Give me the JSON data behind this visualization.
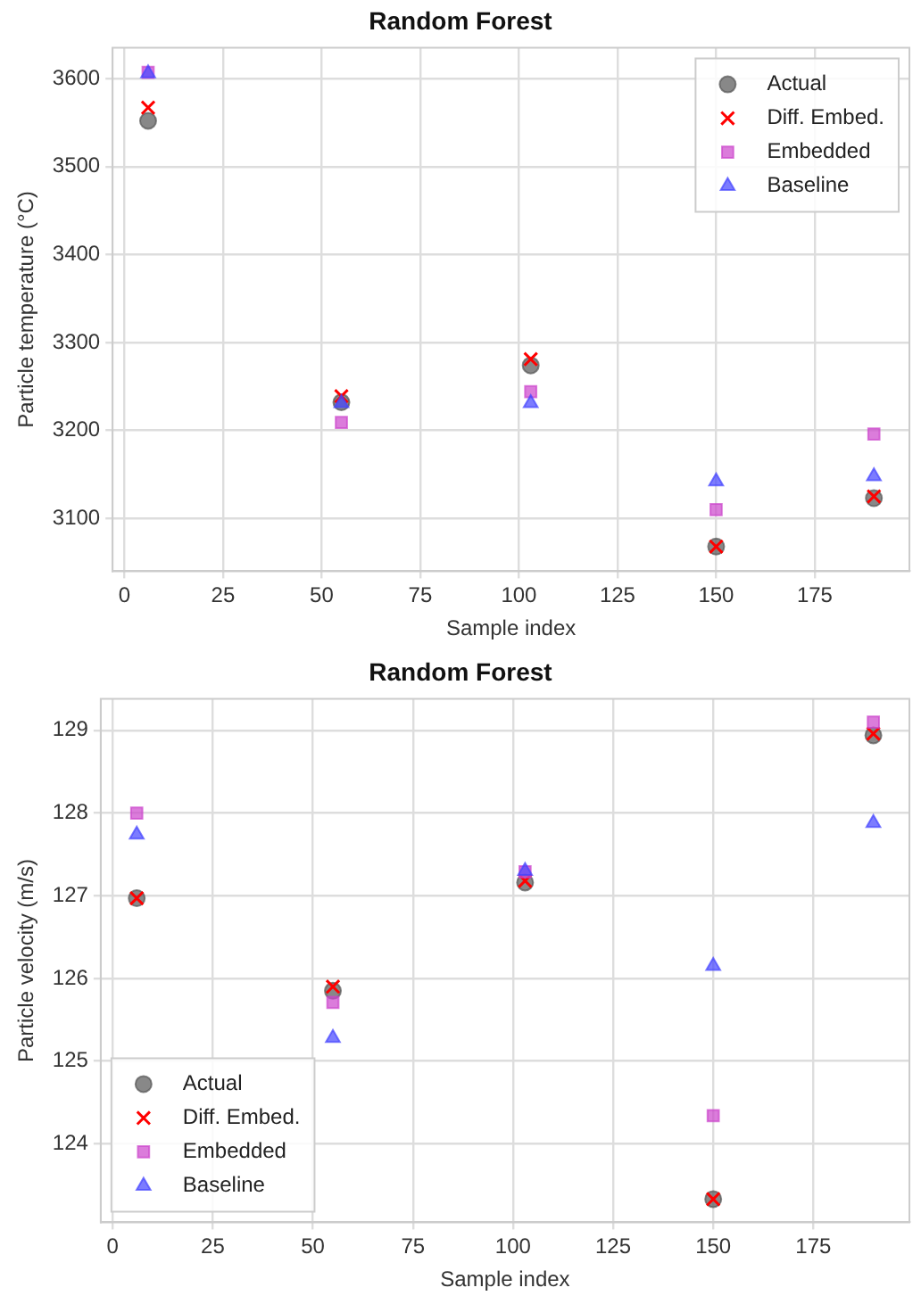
{
  "chart_data": [
    {
      "type": "scatter",
      "title": "Random Forest",
      "xlabel": "Sample index",
      "ylabel": "Particle temperature (°C)",
      "x": [
        6,
        55,
        103,
        150,
        190
      ],
      "xlim": [
        -3,
        199
      ],
      "xticks": [
        0,
        25,
        50,
        75,
        100,
        125,
        150,
        175
      ],
      "ylim": [
        3040,
        3635
      ],
      "yticks": [
        3100,
        3200,
        3300,
        3400,
        3500,
        3600
      ],
      "grid": true,
      "legend": "top right",
      "series": [
        {
          "name": "Actual",
          "color": "#555555",
          "marker": "circle",
          "values": [
            3552,
            3232,
            3274,
            3068,
            3123
          ]
        },
        {
          "name": "Diff. Embed.",
          "color": "#ff0000",
          "marker": "cross",
          "values": [
            3567,
            3239,
            3281,
            3068,
            3125
          ]
        },
        {
          "name": "Embedded",
          "color": "#cc44cc",
          "marker": "square",
          "values": [
            3607,
            3209,
            3244,
            3110,
            3196
          ]
        },
        {
          "name": "Baseline",
          "color": "#4444ff",
          "marker": "triangle",
          "values": [
            3606,
            3231,
            3231,
            3142,
            3148
          ]
        }
      ]
    },
    {
      "type": "scatter",
      "title": "Random Forest",
      "xlabel": "Sample index",
      "ylabel": "Particle velocity (m/s)",
      "x": [
        6,
        55,
        103,
        150,
        190
      ],
      "xlim": [
        -3,
        199
      ],
      "xticks": [
        0,
        25,
        50,
        75,
        100,
        125,
        150,
        175
      ],
      "ylim": [
        123.05,
        129.38
      ],
      "yticks": [
        124,
        125,
        126,
        127,
        128,
        129
      ],
      "grid": true,
      "legend": "bottom left",
      "series": [
        {
          "name": "Actual",
          "color": "#555555",
          "marker": "circle",
          "values": [
            126.97,
            125.85,
            127.16,
            123.33,
            128.94
          ]
        },
        {
          "name": "Diff. Embed.",
          "color": "#ff0000",
          "marker": "cross",
          "values": [
            126.97,
            125.9,
            127.18,
            123.33,
            128.96
          ]
        },
        {
          "name": "Embedded",
          "color": "#cc44cc",
          "marker": "square",
          "values": [
            128.0,
            125.71,
            127.29,
            124.34,
            129.1
          ]
        },
        {
          "name": "Baseline",
          "color": "#4444ff",
          "marker": "triangle",
          "values": [
            127.74,
            125.28,
            127.3,
            126.15,
            127.88
          ]
        }
      ]
    }
  ]
}
